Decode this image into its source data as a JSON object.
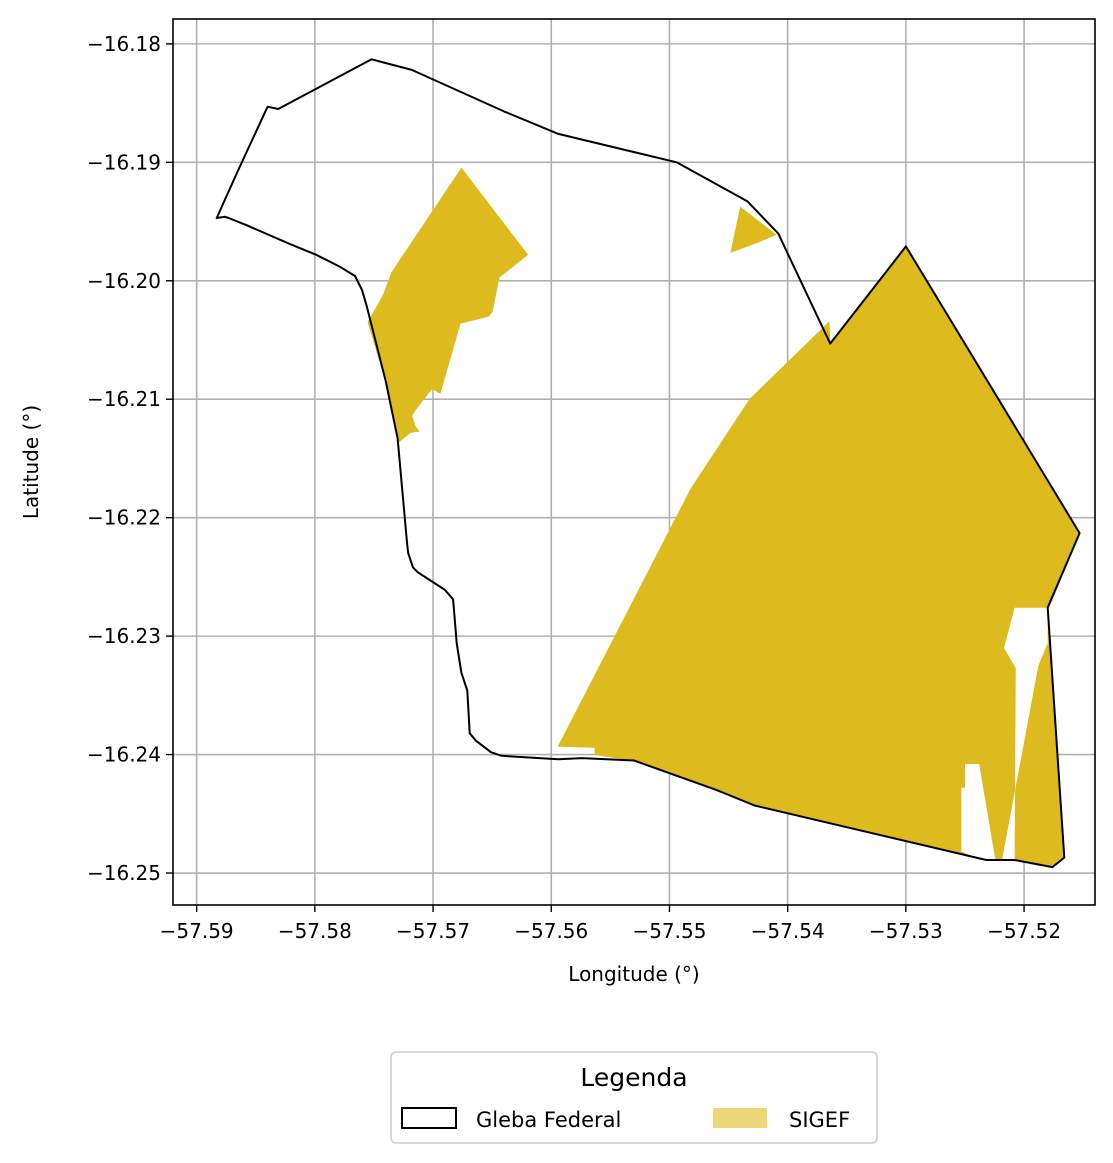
{
  "chart_data": {
    "type": "map",
    "xlabel": "Longitude (°)",
    "ylabel": "Latitude (°)",
    "xlim": [
      -57.592,
      -57.514
    ],
    "ylim": [
      -16.2527,
      -16.1779
    ],
    "x_ticks": [
      -57.59,
      -57.58,
      -57.57,
      -57.56,
      -57.55,
      -57.54,
      -57.53,
      -57.52
    ],
    "x_tick_labels": [
      "−57.59",
      "−57.58",
      "−57.57",
      "−57.56",
      "−57.55",
      "−57.54",
      "−57.53",
      "−57.52"
    ],
    "y_ticks": [
      -16.18,
      -16.19,
      -16.2,
      -16.21,
      -16.22,
      -16.23,
      -16.24,
      -16.25
    ],
    "y_tick_labels": [
      "−16.18",
      "−16.19",
      "−16.20",
      "−16.21",
      "−16.22",
      "−16.23",
      "−16.24",
      "−16.25"
    ],
    "grid": true,
    "legend": {
      "title": "Legenda",
      "placement": "below the map",
      "entries": [
        {
          "label": "Gleba Federal",
          "style": "outline",
          "color": "#000000"
        },
        {
          "label": "SIGEF",
          "style": "fill",
          "color": "#ddbb1e"
        }
      ]
    },
    "gleba_federal": {
      "color": "#000000",
      "coordinates": [
        [
          -57.5752,
          -16.1813
        ],
        [
          -57.5718,
          -16.1822
        ],
        [
          -57.564,
          -16.1857
        ],
        [
          -57.5594,
          -16.1876
        ],
        [
          -57.5494,
          -16.19
        ],
        [
          -57.5434,
          -16.1933
        ],
        [
          -57.5408,
          -16.196
        ],
        [
          -57.5364,
          -16.2053
        ],
        [
          -57.53,
          -16.1971
        ],
        [
          -57.5153,
          -16.2213
        ],
        [
          -57.518,
          -16.2276
        ],
        [
          -57.5166,
          -16.2487
        ],
        [
          -57.5176,
          -16.2495
        ],
        [
          -57.5208,
          -16.2489
        ],
        [
          -57.5232,
          -16.2489
        ],
        [
          -57.5428,
          -16.2443
        ],
        [
          -57.546,
          -16.243
        ],
        [
          -57.553,
          -16.2405
        ],
        [
          -57.5574,
          -16.2403
        ],
        [
          -57.5594,
          -16.2404
        ],
        [
          -57.5642,
          -16.2401
        ],
        [
          -57.5651,
          -16.2398
        ],
        [
          -57.5664,
          -16.2388
        ],
        [
          -57.5669,
          -16.2382
        ],
        [
          -57.5671,
          -16.2346
        ],
        [
          -57.5676,
          -16.2331
        ],
        [
          -57.568,
          -16.2306
        ],
        [
          -57.5683,
          -16.2269
        ],
        [
          -57.569,
          -16.2261
        ],
        [
          -57.571,
          -16.2248
        ],
        [
          -57.5713,
          -16.2246
        ],
        [
          -57.5717,
          -16.2242
        ],
        [
          -57.5721,
          -16.223
        ],
        [
          -57.5722,
          -16.2221
        ],
        [
          -57.573,
          -16.2133
        ],
        [
          -57.574,
          -16.2085
        ],
        [
          -57.5756,
          -16.2022
        ],
        [
          -57.576,
          -16.2008
        ],
        [
          -57.5766,
          -16.1996
        ],
        [
          -57.5779,
          -16.1988
        ],
        [
          -57.5799,
          -16.1978
        ],
        [
          -57.5821,
          -16.1969
        ],
        [
          -57.5858,
          -16.1953
        ],
        [
          -57.5873,
          -16.1947
        ],
        [
          -57.5876,
          -16.1946
        ],
        [
          -57.5883,
          -16.1947
        ],
        [
          -57.5865,
          -16.1907
        ],
        [
          -57.584,
          -16.1853
        ],
        [
          -57.5831,
          -16.1855
        ],
        [
          -57.5752,
          -16.1813
        ]
      ]
    },
    "sigef": {
      "color": "#ddbb1e",
      "parcels": [
        [
          [
            -57.5676,
            -16.1905
          ],
          [
            -57.562,
            -16.1978
          ],
          [
            -57.5644,
            -16.1997
          ],
          [
            -57.565,
            -16.2026
          ],
          [
            -57.5653,
            -16.203
          ],
          [
            -57.5677,
            -16.2036
          ],
          [
            -57.5694,
            -16.2095
          ],
          [
            -57.5701,
            -16.2091
          ],
          [
            -57.5715,
            -16.2109
          ],
          [
            -57.5718,
            -16.2114
          ],
          [
            -57.5715,
            -16.2123
          ],
          [
            -57.5712,
            -16.2127
          ],
          [
            -57.5719,
            -16.2128
          ],
          [
            -57.5729,
            -16.2136
          ],
          [
            -57.574,
            -16.2085
          ],
          [
            -57.5755,
            -16.2035
          ],
          [
            -57.5742,
            -16.2012
          ],
          [
            -57.5735,
            -16.1993
          ]
        ],
        [
          [
            -57.544,
            -16.1938
          ],
          [
            -57.541,
            -16.1961
          ],
          [
            -57.5424,
            -16.1967
          ],
          [
            -57.5448,
            -16.1976
          ]
        ],
        [
          [
            -57.53,
            -16.1971
          ],
          [
            -57.5153,
            -16.2213
          ],
          [
            -57.518,
            -16.2276
          ],
          [
            -57.5166,
            -16.2487
          ],
          [
            -57.5176,
            -16.2495
          ],
          [
            -57.5208,
            -16.2489
          ],
          [
            -57.5232,
            -16.2489
          ],
          [
            -57.5428,
            -16.2443
          ],
          [
            -57.546,
            -16.243
          ],
          [
            -57.553,
            -16.2405
          ],
          [
            -57.5563,
            -16.24
          ],
          [
            -57.5563,
            -16.2394
          ],
          [
            -57.5594,
            -16.2393
          ],
          [
            -57.5482,
            -16.2176
          ],
          [
            -57.5432,
            -16.21
          ],
          [
            -57.5365,
            -16.2035
          ],
          [
            -57.5364,
            -16.2053
          ]
        ]
      ],
      "white_gaps": [
        [
          [
            -57.5207,
            -16.2327
          ],
          [
            -57.5217,
            -16.231
          ],
          [
            -57.5208,
            -16.2276
          ],
          [
            -57.518,
            -16.2276
          ],
          [
            -57.518,
            -16.2306
          ],
          [
            -57.5188,
            -16.2325
          ],
          [
            -57.5219,
            -16.2491
          ],
          [
            -57.5224,
            -16.2491
          ],
          [
            -57.5238,
            -16.2408
          ],
          [
            -57.525,
            -16.2408
          ],
          [
            -57.525,
            -16.2428
          ],
          [
            -57.5253,
            -16.2428
          ],
          [
            -57.5253,
            -16.2482
          ],
          [
            -57.523,
            -16.2491
          ],
          [
            -57.5208,
            -16.2489
          ]
        ]
      ]
    }
  }
}
